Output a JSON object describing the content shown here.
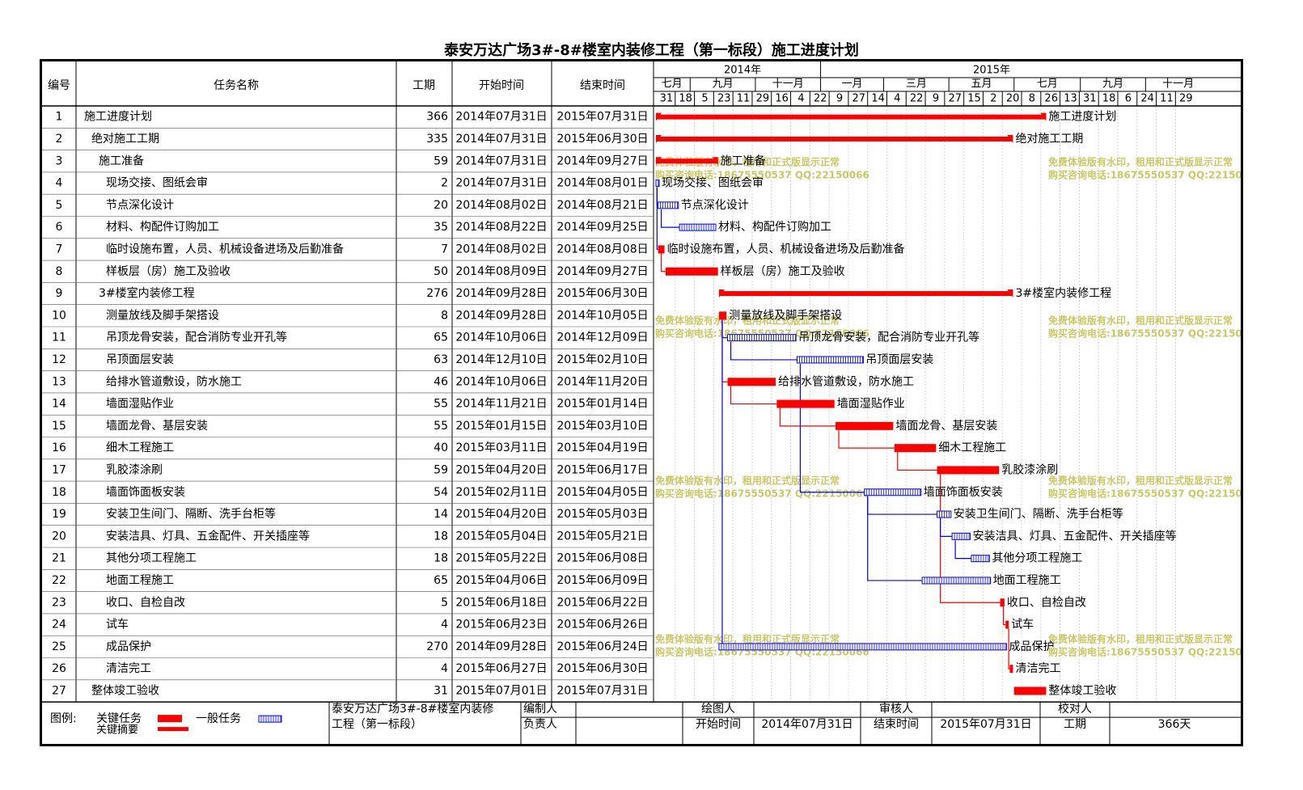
{
  "title": "泰安万达广场3#-8#楼室内装修工程（第一标段）施工进度计划",
  "columns": {
    "no": "编号",
    "name": "任务名称",
    "dur": "工期",
    "start": "开始时间",
    "end": "结束时间"
  },
  "timeline": {
    "years": [
      "2014年",
      "2015年"
    ],
    "months": [
      "七月",
      "九月",
      "十一月",
      "一月",
      "三月",
      "五月",
      "七月",
      "九月",
      "十一月"
    ],
    "days": [
      "31",
      "18",
      "5",
      "23",
      "11",
      "29",
      "16",
      "4",
      "22",
      "9",
      "27",
      "14",
      "4",
      "22",
      "9",
      "27",
      "15",
      "2",
      "20",
      "8",
      "26",
      "13",
      "31",
      "18",
      "6",
      "24",
      "11",
      "29"
    ]
  },
  "chart_data": {
    "type": "gantt",
    "title": "泰安万达广场3#-8#楼室内装修工程（第一标段）施工进度计划",
    "x_axis": {
      "type": "date",
      "range": [
        "2014-07-31",
        "2015-12-29"
      ]
    },
    "tasks": [
      {
        "id": "1",
        "name": "施工进度计划",
        "duration": "366",
        "start": "2014年07月31日",
        "end": "2015年07月31日",
        "kind": "summary",
        "level": 0
      },
      {
        "id": "2",
        "name": "绝对施工工期",
        "duration": "335",
        "start": "2014年07月31日",
        "end": "2015年06月30日",
        "kind": "summary",
        "level": 1
      },
      {
        "id": "3",
        "name": "施工准备",
        "duration": "59",
        "start": "2014年07月31日",
        "end": "2014年09月27日",
        "kind": "summary",
        "level": 2
      },
      {
        "id": "4",
        "name": "现场交接、图纸会审",
        "duration": "2",
        "start": "2014年07月31日",
        "end": "2014年08月01日",
        "kind": "normal",
        "level": 3
      },
      {
        "id": "5",
        "name": "节点深化设计",
        "duration": "20",
        "start": "2014年08月02日",
        "end": "2014年08月21日",
        "kind": "normal",
        "level": 3
      },
      {
        "id": "6",
        "name": "材料、构配件订购加工",
        "duration": "35",
        "start": "2014年08月22日",
        "end": "2014年09月25日",
        "kind": "normal",
        "level": 3
      },
      {
        "id": "7",
        "name": "临时设施布置，人员、机械设备进场及后勤准备",
        "duration": "7",
        "start": "2014年08月02日",
        "end": "2014年08月08日",
        "kind": "critical",
        "level": 3
      },
      {
        "id": "8",
        "name": "样板层（房）施工及验收",
        "duration": "50",
        "start": "2014年08月09日",
        "end": "2014年09月27日",
        "kind": "critical",
        "level": 3
      },
      {
        "id": "9",
        "name": "3#楼室内装修工程",
        "duration": "276",
        "start": "2014年09月28日",
        "end": "2015年06月30日",
        "kind": "summary",
        "level": 2
      },
      {
        "id": "10",
        "name": "测量放线及脚手架搭设",
        "duration": "8",
        "start": "2014年09月28日",
        "end": "2014年10月05日",
        "kind": "critical",
        "level": 3
      },
      {
        "id": "11",
        "name": "吊顶龙骨安装，配合消防专业开孔等",
        "duration": "65",
        "start": "2014年10月06日",
        "end": "2014年12月09日",
        "kind": "normal",
        "level": 3
      },
      {
        "id": "12",
        "name": "吊顶面层安装",
        "duration": "63",
        "start": "2014年12月10日",
        "end": "2015年02月10日",
        "kind": "normal",
        "level": 3
      },
      {
        "id": "13",
        "name": "给排水管道敷设，防水施工",
        "duration": "46",
        "start": "2014年10月06日",
        "end": "2014年11月20日",
        "kind": "critical",
        "level": 3
      },
      {
        "id": "14",
        "name": "墙面湿贴作业",
        "duration": "55",
        "start": "2014年11月21日",
        "end": "2015年01月14日",
        "kind": "critical",
        "level": 3
      },
      {
        "id": "15",
        "name": "墙面龙骨、基层安装",
        "duration": "55",
        "start": "2015年01月15日",
        "end": "2015年03月10日",
        "kind": "critical",
        "level": 3
      },
      {
        "id": "16",
        "name": "细木工程施工",
        "duration": "40",
        "start": "2015年03月11日",
        "end": "2015年04月19日",
        "kind": "critical",
        "level": 3
      },
      {
        "id": "17",
        "name": "乳胶漆涂刷",
        "duration": "59",
        "start": "2015年04月20日",
        "end": "2015年06月17日",
        "kind": "critical",
        "level": 3
      },
      {
        "id": "18",
        "name": "墙面饰面板安装",
        "duration": "54",
        "start": "2015年02月11日",
        "end": "2015年04月05日",
        "kind": "normal",
        "level": 3
      },
      {
        "id": "19",
        "name": "安装卫生间门、隔断、洗手台柜等",
        "duration": "14",
        "start": "2015年04月20日",
        "end": "2015年05月03日",
        "kind": "normal",
        "level": 3
      },
      {
        "id": "20",
        "name": "安装洁具、灯具、五金配件、开关插座等",
        "duration": "18",
        "start": "2015年05月04日",
        "end": "2015年05月21日",
        "kind": "normal",
        "level": 3
      },
      {
        "id": "21",
        "name": "其他分项工程施工",
        "duration": "18",
        "start": "2015年05月22日",
        "end": "2015年06月08日",
        "kind": "normal",
        "level": 3
      },
      {
        "id": "22",
        "name": "地面工程施工",
        "duration": "65",
        "start": "2015年04月06日",
        "end": "2015年06月09日",
        "kind": "normal",
        "level": 3
      },
      {
        "id": "23",
        "name": "收口、自检自改",
        "duration": "5",
        "start": "2015年06月18日",
        "end": "2015年06月22日",
        "kind": "critical",
        "level": 3
      },
      {
        "id": "24",
        "name": "试车",
        "duration": "4",
        "start": "2015年06月23日",
        "end": "2015年06月26日",
        "kind": "critical",
        "level": 3
      },
      {
        "id": "25",
        "name": "成品保护",
        "duration": "270",
        "start": "2014年09月28日",
        "end": "2015年06月24日",
        "kind": "normal",
        "level": 3
      },
      {
        "id": "26",
        "name": "清洁完工",
        "duration": "4",
        "start": "2015年06月27日",
        "end": "2015年06月30日",
        "kind": "critical",
        "level": 3
      },
      {
        "id": "27",
        "name": "整体竣工验收",
        "duration": "31",
        "start": "2015年07月01日",
        "end": "2015年07月31日",
        "kind": "critical",
        "level": 1
      }
    ],
    "colors": {
      "critical": "#ff0000",
      "normal": "#0000ff",
      "link": "#0000ff",
      "critical_link": "#ff0000"
    }
  },
  "watermark": {
    "line1": "免费体验版有水印，租用和正式版显示正常",
    "line2": "购买咨询电话:18675550537 QQ:22150066",
    "color": "#c8c864"
  },
  "footer": {
    "legend_label": "图例:",
    "critical_label": "关键任务",
    "normal_label": "一般任务",
    "summary_label": "关键摘要",
    "project_name": "泰安万达广场3#-8#楼室内装修工程（第一标段）",
    "labels": {
      "editor": "编制人",
      "drawer": "绘图人",
      "reviewer": "审核人",
      "checker": "校对人",
      "owner": "负责人",
      "start": "开始时间",
      "end": "结束时间",
      "duration": "工期"
    },
    "start_value": "2014年07月31日",
    "end_value": "2015年07月31日",
    "duration_value": "366天"
  }
}
